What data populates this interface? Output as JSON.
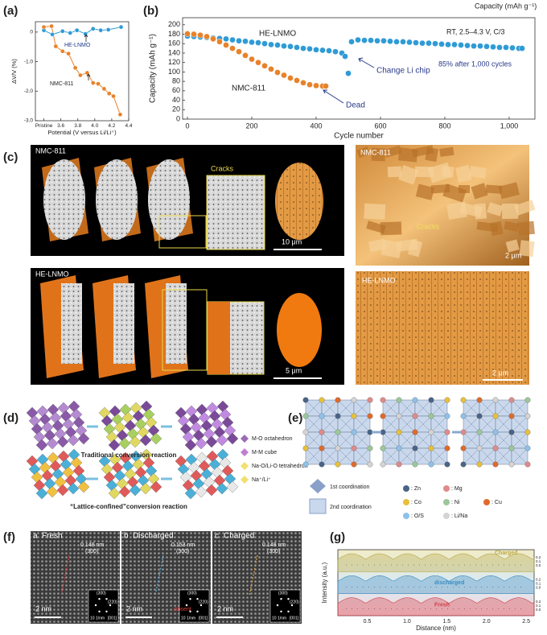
{
  "chart_data": [
    {
      "type": "line",
      "xlabel": "Potential (V versus Li/Li⁺)",
      "ylabel": "ΔV/V (%)",
      "xlim": [
        3.3,
        4.4
      ],
      "ylim": [
        -3.0,
        0.35
      ],
      "xticks": [
        {
          "value": 3.4,
          "label": "Pristine"
        },
        3.6,
        3.8,
        {
          "value": 4.0,
          "label": "4.0"
        },
        4.2,
        4.4
      ],
      "yticks": [
        0,
        {
          "value": -1,
          "label": "-1.0"
        },
        {
          "value": -2,
          "label": "-2.0"
        },
        {
          "value": -3,
          "label": "-3.0"
        }
      ],
      "series": [
        {
          "name": "HE-LNMO",
          "color": "#2f9bd6",
          "x": [
            3.4,
            3.5,
            3.62,
            3.71,
            3.79,
            3.89,
            3.98,
            4.07,
            4.16,
            4.31
          ],
          "values": [
            0.06,
            -0.08,
            0.03,
            -0.03,
            0.06,
            -0.06,
            0.11,
            0.06,
            0.08,
            0.17
          ]
        },
        {
          "name": "NMC-811",
          "color": "#e8822a",
          "x": [
            3.4,
            3.49,
            3.54,
            3.62,
            3.69,
            3.77,
            3.83,
            3.91,
            3.98,
            4.04,
            4.11,
            4.17,
            4.22,
            4.3
          ],
          "values": [
            0.17,
            0.2,
            -0.48,
            -0.65,
            -0.73,
            -1.21,
            -1.46,
            -1.38,
            -1.72,
            -1.75,
            -1.92,
            -2.08,
            -2.17,
            -2.79
          ]
        }
      ]
    },
    {
      "type": "scatter",
      "xlabel": "Cycle number",
      "ylabel": "Capacity (mAh g⁻¹)",
      "xlim": [
        -15,
        1080
      ],
      "ylim": [
        0,
        215
      ],
      "xticks": [
        0,
        200,
        400,
        600,
        800,
        {
          "value": 1000,
          "label": "1,000"
        }
      ],
      "yticks": [
        0,
        20,
        40,
        60,
        80,
        100,
        120,
        140,
        160,
        180,
        200
      ],
      "annotations": [
        "Capacity (mAh g⁻¹)",
        "RT, 2.5–4.3 V, C/3",
        "85% after 1,000 cycles",
        "Change Li chip",
        "Dead"
      ],
      "series": [
        {
          "name": "HE-LNMO",
          "color": "#2f9bd6",
          "x": [
            0,
            20,
            40,
            60,
            80,
            100,
            120,
            140,
            160,
            180,
            200,
            220,
            240,
            260,
            280,
            300,
            320,
            340,
            360,
            380,
            400,
            420,
            440,
            460,
            480,
            490,
            500,
            510,
            530,
            550,
            570,
            590,
            610,
            630,
            650,
            670,
            690,
            710,
            730,
            750,
            770,
            790,
            810,
            830,
            850,
            870,
            890,
            910,
            930,
            950,
            970,
            990,
            1010,
            1030,
            1040
          ],
          "values": [
            176,
            175,
            174,
            173,
            172,
            171,
            170,
            168,
            166,
            165,
            163,
            162,
            160,
            158,
            157,
            155,
            154,
            152,
            150,
            149,
            147,
            146,
            145,
            143,
            140,
            133,
            97,
            164,
            168,
            167,
            167,
            166,
            166,
            165,
            164,
            164,
            163,
            162,
            161,
            161,
            160,
            159,
            158,
            158,
            157,
            156,
            155,
            155,
            154,
            153,
            152,
            152,
            151,
            150,
            150
          ]
        },
        {
          "name": "NMC-811",
          "color": "#e8822a",
          "x": [
            0,
            20,
            40,
            60,
            80,
            100,
            120,
            140,
            160,
            180,
            200,
            220,
            240,
            260,
            280,
            300,
            320,
            340,
            360,
            380,
            400,
            420,
            430
          ],
          "values": [
            181,
            180,
            178,
            175,
            170,
            164,
            157,
            150,
            143,
            135,
            127,
            120,
            113,
            106,
            99,
            93,
            87,
            82,
            77,
            73,
            71,
            70,
            70
          ]
        }
      ]
    },
    {
      "type": "area",
      "xlabel": "Distance (nm)",
      "ylabel": "Intensity (a.u.)",
      "xlim": [
        0.13,
        2.6
      ],
      "xticks": [
        0.5,
        {
          "value": 1,
          "label": "1.0"
        },
        1.5,
        {
          "value": 2,
          "label": "2.0"
        },
        2.5
      ],
      "right_ticks": [
        0.2,
        0.1,
        {
          "value": 0,
          "label": "0.0"
        }
      ],
      "profiles": [
        {
          "name": "Charged",
          "color": "#b8a844"
        },
        {
          "name": "discharged",
          "color": "#3c8cc0"
        },
        {
          "name": "Fresh",
          "color": "#d0404a"
        }
      ]
    }
  ],
  "figure": {
    "panel_labels": [
      "(a)",
      "(b)",
      "(c)",
      "(d)",
      "(e)",
      "(f)",
      "(g)"
    ],
    "c": {
      "top_left": "NMC-811",
      "cracks_left": "Cracks",
      "scale_top": "10 μm",
      "bottom_left": "HE-LNMO",
      "scale_bottom": "5 μm",
      "top_right": "NMC-811",
      "cracks_right": "Cracks",
      "scale_top_right": "2 μm",
      "bottom_right": "HE-LNMO",
      "scale_bottom_right": "2 μm"
    },
    "d": {
      "legend": [
        "M-O octahedron",
        "M-M cube",
        "Na-O/Li-O tetrahedron",
        "Na⁺/Li⁺"
      ],
      "top_caption": "Traditional conversion  reaction",
      "bottom_caption": "“Lattice-confined”conversion reaction"
    },
    "e": {
      "first": "1st coordination",
      "second": "2nd coordination",
      "elements": [
        {
          "label": ": Zn",
          "color": "#4a6486"
        },
        {
          "label": ": Mg",
          "color": "#e08a8a"
        },
        {
          "label": ": Co",
          "color": "#e8c03a"
        },
        {
          "label": ": Ni",
          "color": "#9cc79a"
        },
        {
          "label": ": Cu",
          "color": "#e06a2a"
        },
        {
          "label": ": O/S",
          "color": "#8cc2ea"
        },
        {
          "label": ": Li/Na",
          "color": "#d4d4d4"
        }
      ]
    },
    "f": {
      "panels": [
        {
          "letter": "a",
          "state": "Fresh",
          "spacing": "0.148 nm",
          "plane": "(300)"
        },
        {
          "letter": "b",
          "state": "Discharged",
          "spacing": "0.153 nm",
          "plane": "(300)",
          "note": "Absent"
        },
        {
          "letter": "c",
          "state": "Charged",
          "spacing": "0.148 nm",
          "plane": "(300)"
        }
      ],
      "scale": "2 nm",
      "fft": [
        "(300)",
        "(220)",
        "10 1/nm",
        "[001]"
      ]
    }
  }
}
